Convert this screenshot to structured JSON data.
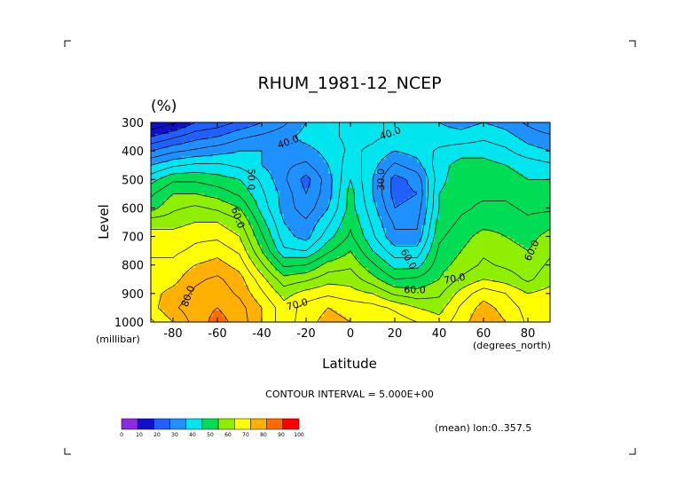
{
  "chart_data": {
    "type": "heatmap",
    "title": "RHUM_1981-12_NCEP",
    "unit_label": "(%)",
    "xlabel": "Latitude",
    "ylabel": "Level",
    "x_unit": "(degrees_north)",
    "y_unit": "(millibar)",
    "xlim": [
      -90,
      90
    ],
    "ylim": [
      1000,
      300
    ],
    "x_ticks": [
      "-80",
      "-60",
      "-40",
      "-20",
      "0",
      "20",
      "40",
      "60",
      "80"
    ],
    "x_tick_values": [
      -80,
      -60,
      -40,
      -20,
      0,
      20,
      40,
      60,
      80
    ],
    "y_ticks": [
      "300",
      "400",
      "500",
      "600",
      "700",
      "800",
      "900",
      "1000"
    ],
    "y_tick_values": [
      300,
      400,
      500,
      600,
      700,
      800,
      900,
      1000
    ],
    "x": [
      -90,
      -80,
      -70,
      -60,
      -50,
      -40,
      -30,
      -20,
      -10,
      0,
      10,
      20,
      30,
      40,
      50,
      60,
      70,
      80,
      90
    ],
    "y": [
      1000,
      950,
      900,
      850,
      800,
      750,
      700,
      650,
      600,
      550,
      500,
      450,
      400,
      350,
      300
    ],
    "z": [
      [
        74,
        80,
        87,
        92,
        88,
        80,
        72,
        78,
        82,
        80,
        80,
        78,
        75,
        72,
        78,
        84,
        80,
        74,
        70
      ],
      [
        78,
        84,
        88,
        90,
        87,
        80,
        72,
        77,
        80,
        78,
        77,
        74,
        70,
        68,
        76,
        82,
        78,
        73,
        72
      ],
      [
        78,
        82,
        86,
        88,
        84,
        76,
        68,
        72,
        74,
        72,
        70,
        64,
        62,
        64,
        72,
        78,
        75,
        70,
        72
      ],
      [
        76,
        78,
        84,
        86,
        82,
        72,
        62,
        64,
        68,
        68,
        62,
        55,
        56,
        60,
        66,
        70,
        68,
        64,
        68
      ],
      [
        76,
        76,
        80,
        82,
        78,
        66,
        54,
        55,
        62,
        64,
        56,
        48,
        48,
        58,
        62,
        66,
        64,
        62,
        66
      ],
      [
        74,
        74,
        76,
        78,
        74,
        60,
        46,
        45,
        54,
        60,
        50,
        42,
        42,
        56,
        60,
        64,
        62,
        60,
        64
      ],
      [
        72,
        72,
        74,
        74,
        70,
        56,
        42,
        38,
        48,
        56,
        46,
        36,
        36,
        54,
        58,
        62,
        60,
        58,
        62
      ],
      [
        68,
        68,
        70,
        70,
        66,
        52,
        40,
        36,
        44,
        54,
        44,
        34,
        34,
        52,
        56,
        58,
        58,
        56,
        58
      ],
      [
        58,
        64,
        66,
        64,
        60,
        48,
        38,
        32,
        40,
        52,
        42,
        30,
        32,
        50,
        54,
        56,
        56,
        54,
        54
      ],
      [
        54,
        60,
        60,
        58,
        54,
        46,
        38,
        30,
        38,
        52,
        40,
        28,
        30,
        50,
        54,
        54,
        54,
        52,
        52
      ],
      [
        48,
        54,
        54,
        52,
        50,
        44,
        36,
        28,
        38,
        50,
        40,
        28,
        32,
        48,
        54,
        54,
        52,
        50,
        50
      ],
      [
        40,
        44,
        46,
        46,
        44,
        40,
        36,
        34,
        40,
        48,
        42,
        34,
        38,
        48,
        52,
        52,
        50,
        48,
        46
      ],
      [
        30,
        34,
        36,
        38,
        40,
        40,
        38,
        38,
        42,
        46,
        44,
        40,
        42,
        46,
        48,
        48,
        46,
        42,
        40
      ],
      [
        20,
        24,
        28,
        30,
        34,
        36,
        38,
        42,
        44,
        46,
        46,
        44,
        44,
        42,
        42,
        44,
        42,
        38,
        36
      ],
      [
        10,
        14,
        20,
        22,
        26,
        30,
        34,
        40,
        44,
        46,
        46,
        44,
        44,
        40,
        38,
        40,
        38,
        34,
        30
      ]
    ],
    "contour_labels": [
      {
        "text": "40.0",
        "lat": -28,
        "lev": 370,
        "angle": -20
      },
      {
        "text": "40.0",
        "lat": 18,
        "lev": 340,
        "angle": -20
      },
      {
        "text": "50.0",
        "lat": -45,
        "lev": 500,
        "angle": 90
      },
      {
        "text": "30.0",
        "lat": 14,
        "lev": 500,
        "angle": -90
      },
      {
        "text": "60.0",
        "lat": -51,
        "lev": 635,
        "angle": 70
      },
      {
        "text": "70.0",
        "lat": -24,
        "lev": 940,
        "angle": -15
      },
      {
        "text": "60.0",
        "lat": 26,
        "lev": 780,
        "angle": 60
      },
      {
        "text": "60.0",
        "lat": 29,
        "lev": 890,
        "angle": 0
      },
      {
        "text": "70.0",
        "lat": 47,
        "lev": 850,
        "angle": -10
      },
      {
        "text": "60.0",
        "lat": 82,
        "lev": 750,
        "angle": -65
      },
      {
        "text": "80.0",
        "lat": -73,
        "lev": 910,
        "angle": -70
      }
    ],
    "contour_interval_text": "CONTOUR INTERVAL = 5.000E+00",
    "mean_text": "(mean) lon:0..357.5",
    "colorbar": {
      "labels": [
        "0",
        "10",
        "20",
        "30",
        "40",
        "50",
        "60",
        "70",
        "80",
        "90",
        "100"
      ],
      "colors": [
        "#8a2be2",
        "#1010cc",
        "#2060ff",
        "#1e90ff",
        "#00e5ee",
        "#00dd55",
        "#90ee00",
        "#ffff00",
        "#ffb000",
        "#ff6a00",
        "#ff0000"
      ]
    }
  }
}
